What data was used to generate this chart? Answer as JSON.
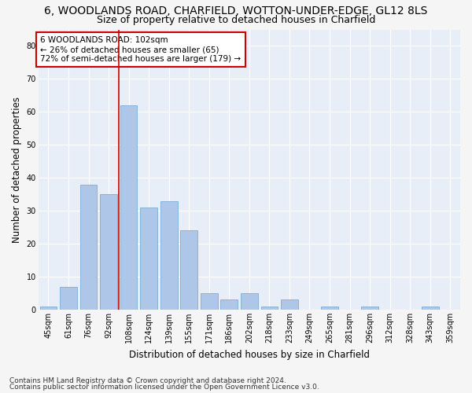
{
  "title": "6, WOODLANDS ROAD, CHARFIELD, WOTTON-UNDER-EDGE, GL12 8LS",
  "subtitle": "Size of property relative to detached houses in Charfield",
  "xlabel": "Distribution of detached houses by size in Charfield",
  "ylabel": "Number of detached properties",
  "footer_line1": "Contains HM Land Registry data © Crown copyright and database right 2024.",
  "footer_line2": "Contains public sector information licensed under the Open Government Licence v3.0.",
  "categories": [
    "45sqm",
    "61sqm",
    "76sqm",
    "92sqm",
    "108sqm",
    "124sqm",
    "139sqm",
    "155sqm",
    "171sqm",
    "186sqm",
    "202sqm",
    "218sqm",
    "233sqm",
    "249sqm",
    "265sqm",
    "281sqm",
    "296sqm",
    "312sqm",
    "328sqm",
    "343sqm",
    "359sqm"
  ],
  "values": [
    1,
    7,
    38,
    35,
    62,
    31,
    33,
    24,
    5,
    3,
    5,
    1,
    3,
    0,
    1,
    0,
    1,
    0,
    0,
    1,
    0
  ],
  "bar_color": "#aec6e8",
  "bar_edge_color": "#7aadd4",
  "vline_color": "#cc0000",
  "vline_pos": 3.5,
  "annotation_text_line1": "6 WOODLANDS ROAD: 102sqm",
  "annotation_text_line2": "← 26% of detached houses are smaller (65)",
  "annotation_text_line3": "72% of semi-detached houses are larger (179) →",
  "annotation_box_color": "#ffffff",
  "annotation_box_edge_color": "#cc0000",
  "ylim": [
    0,
    85
  ],
  "yticks": [
    0,
    10,
    20,
    30,
    40,
    50,
    60,
    70,
    80
  ],
  "bg_color": "#e8eef8",
  "grid_color": "#ffffff",
  "fig_bg_color": "#f5f5f5",
  "title_fontsize": 10,
  "subtitle_fontsize": 9,
  "axis_label_fontsize": 8.5,
  "tick_fontsize": 7,
  "annotation_fontsize": 7.5,
  "footer_fontsize": 6.5
}
